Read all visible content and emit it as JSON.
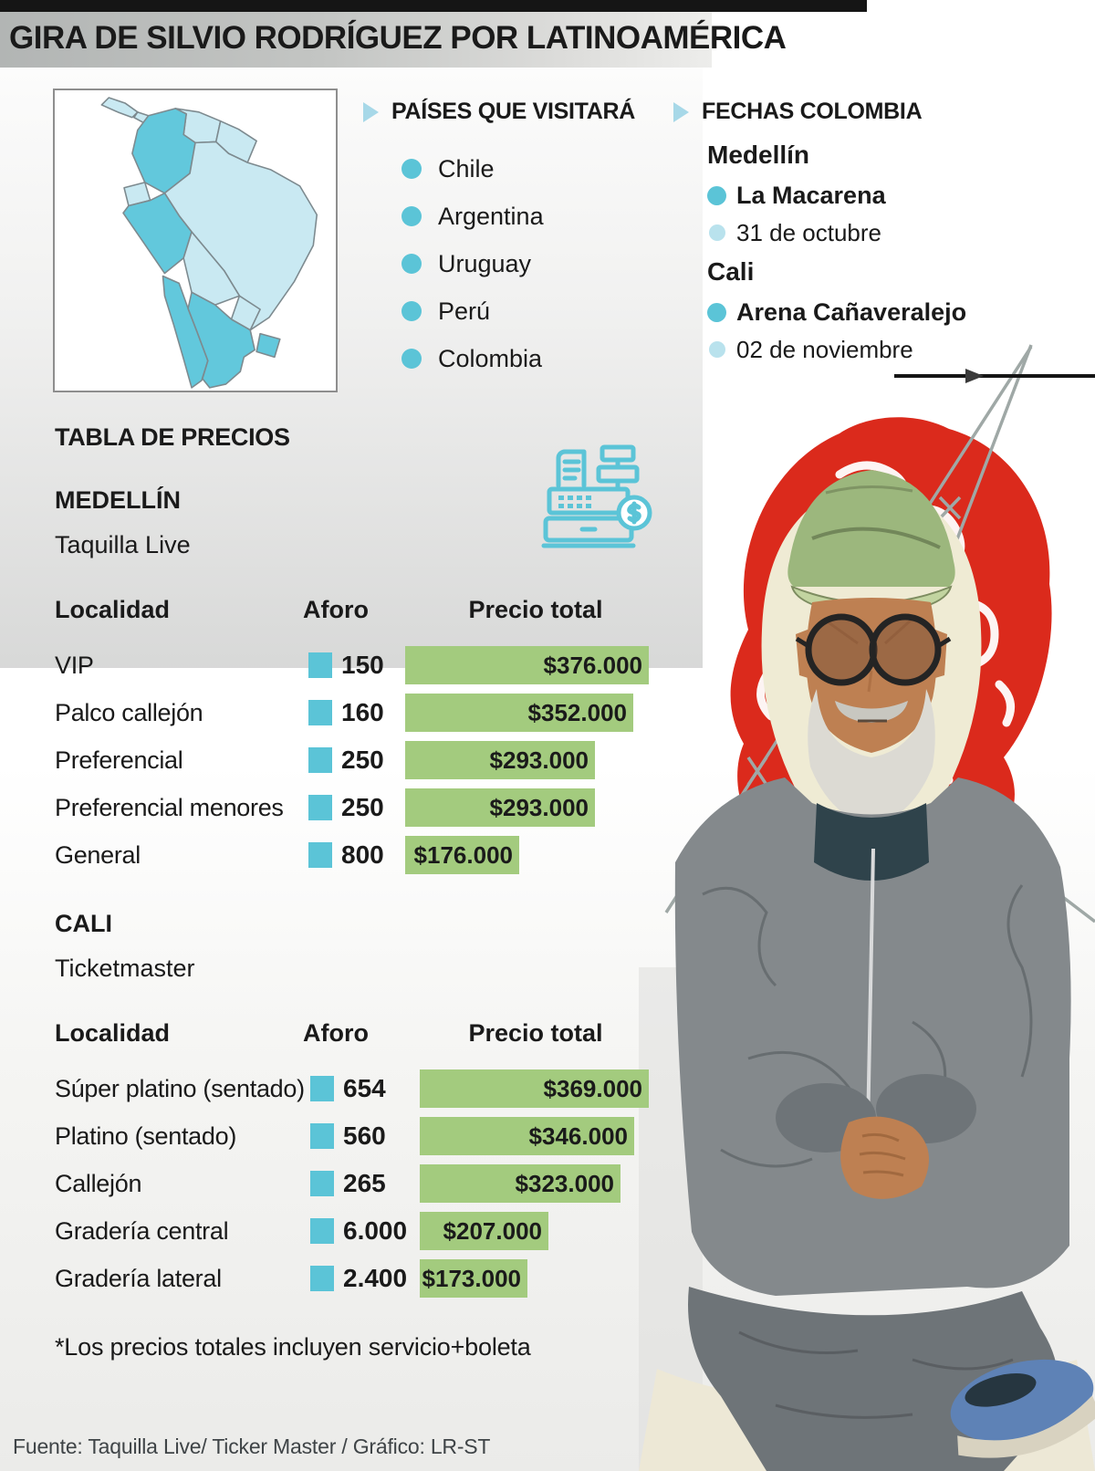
{
  "title": "GIRA DE SILVIO RODRÍGUEZ POR LATINOAMÉRICA",
  "colors": {
    "accent_teal": "#5BC4D7",
    "light_teal": "#B9E2ED",
    "light_blue_triangle": "#A7D8E8",
    "bar_green": "#A3CB7E",
    "map_light": "#C9E9F2",
    "map_dark": "#62C8DC",
    "brain_red": "#DB2A1C"
  },
  "icons": {
    "triangle_bullet": "triangle-right-icon",
    "country_bullet": "circle-dot-icon",
    "cash_register": "cash-register-icon"
  },
  "map": {
    "highlighted_countries": [
      "Colombia",
      "Perú",
      "Chile",
      "Argentina",
      "Uruguay"
    ]
  },
  "countries_section": {
    "heading": "PAÍSES QUE VISITARÁ",
    "items": [
      "Chile",
      "Argentina",
      "Uruguay",
      "Perú",
      "Colombia"
    ]
  },
  "dates_section": {
    "heading": "FECHAS COLOMBIA",
    "cities": [
      {
        "city": "Medellín",
        "venue": "La Macarena",
        "date": "31 de octubre"
      },
      {
        "city": "Cali",
        "venue": "Arena Cañaveralejo",
        "date": "02 de noviembre"
      }
    ]
  },
  "prices_section": {
    "heading": "TABLA DE PRECIOS",
    "note": "*Los precios totales incluyen servicio+boleta",
    "tables": [
      {
        "city": "MEDELLÍN",
        "vendor": "Taquilla Live",
        "columns": [
          "Localidad",
          "Aforo",
          "Precio total"
        ],
        "rows": [
          {
            "localidad": "VIP",
            "aforo": "150",
            "precio": "$376.000",
            "precio_value": 376000
          },
          {
            "localidad": "Palco callejón",
            "aforo": "160",
            "precio": "$352.000",
            "precio_value": 352000
          },
          {
            "localidad": "Preferencial",
            "aforo": "250",
            "precio": "$293.000",
            "precio_value": 293000
          },
          {
            "localidad": "Preferencial menores",
            "aforo": "250",
            "precio": "$293.000",
            "precio_value": 293000
          },
          {
            "localidad": "General",
            "aforo": "800",
            "precio": "$176.000",
            "precio_value": 176000
          }
        ]
      },
      {
        "city": "CALI",
        "vendor": "Ticketmaster",
        "columns": [
          "Localidad",
          "Aforo",
          "Precio total"
        ],
        "rows": [
          {
            "localidad": "Súper platino (sentado)",
            "aforo": "654",
            "precio": "$369.000",
            "precio_value": 369000
          },
          {
            "localidad": "Platino (sentado)",
            "aforo": "560",
            "precio": "$346.000",
            "precio_value": 346000
          },
          {
            "localidad": "Callejón",
            "aforo": "265",
            "precio": "$323.000",
            "precio_value": 323000
          },
          {
            "localidad": "Gradería central",
            "aforo": "6.000",
            "precio": "$207.000",
            "precio_value": 207000
          },
          {
            "localidad": "Gradería lateral",
            "aforo": "2.400",
            "precio": "$173.000",
            "precio_value": 173000
          }
        ]
      }
    ]
  },
  "footer": "Fuente: Taquilla Live/ Ticker Master / Gráfico: LR-ST",
  "chart_data": [
    {
      "type": "bar",
      "title": "MEDELLÍN — Taquilla Live",
      "categories": [
        "VIP",
        "Palco callejón",
        "Preferencial",
        "Preferencial menores",
        "General"
      ],
      "series": [
        {
          "name": "Aforo",
          "values": [
            150,
            160,
            250,
            250,
            800
          ]
        },
        {
          "name": "Precio total (COP)",
          "values": [
            376000,
            352000,
            293000,
            293000,
            176000
          ]
        }
      ],
      "xlabel": "Localidad",
      "ylabel": "Precio total",
      "legend_position": "none",
      "grid": false
    },
    {
      "type": "bar",
      "title": "CALI — Ticketmaster",
      "categories": [
        "Súper platino (sentado)",
        "Platino (sentado)",
        "Callejón",
        "Gradería central",
        "Gradería lateral"
      ],
      "series": [
        {
          "name": "Aforo",
          "values": [
            654,
            560,
            265,
            6000,
            2400
          ]
        },
        {
          "name": "Precio total (COP)",
          "values": [
            369000,
            346000,
            323000,
            207000,
            173000
          ]
        }
      ],
      "xlabel": "Localidad",
      "ylabel": "Precio total",
      "legend_position": "none",
      "grid": false
    }
  ]
}
